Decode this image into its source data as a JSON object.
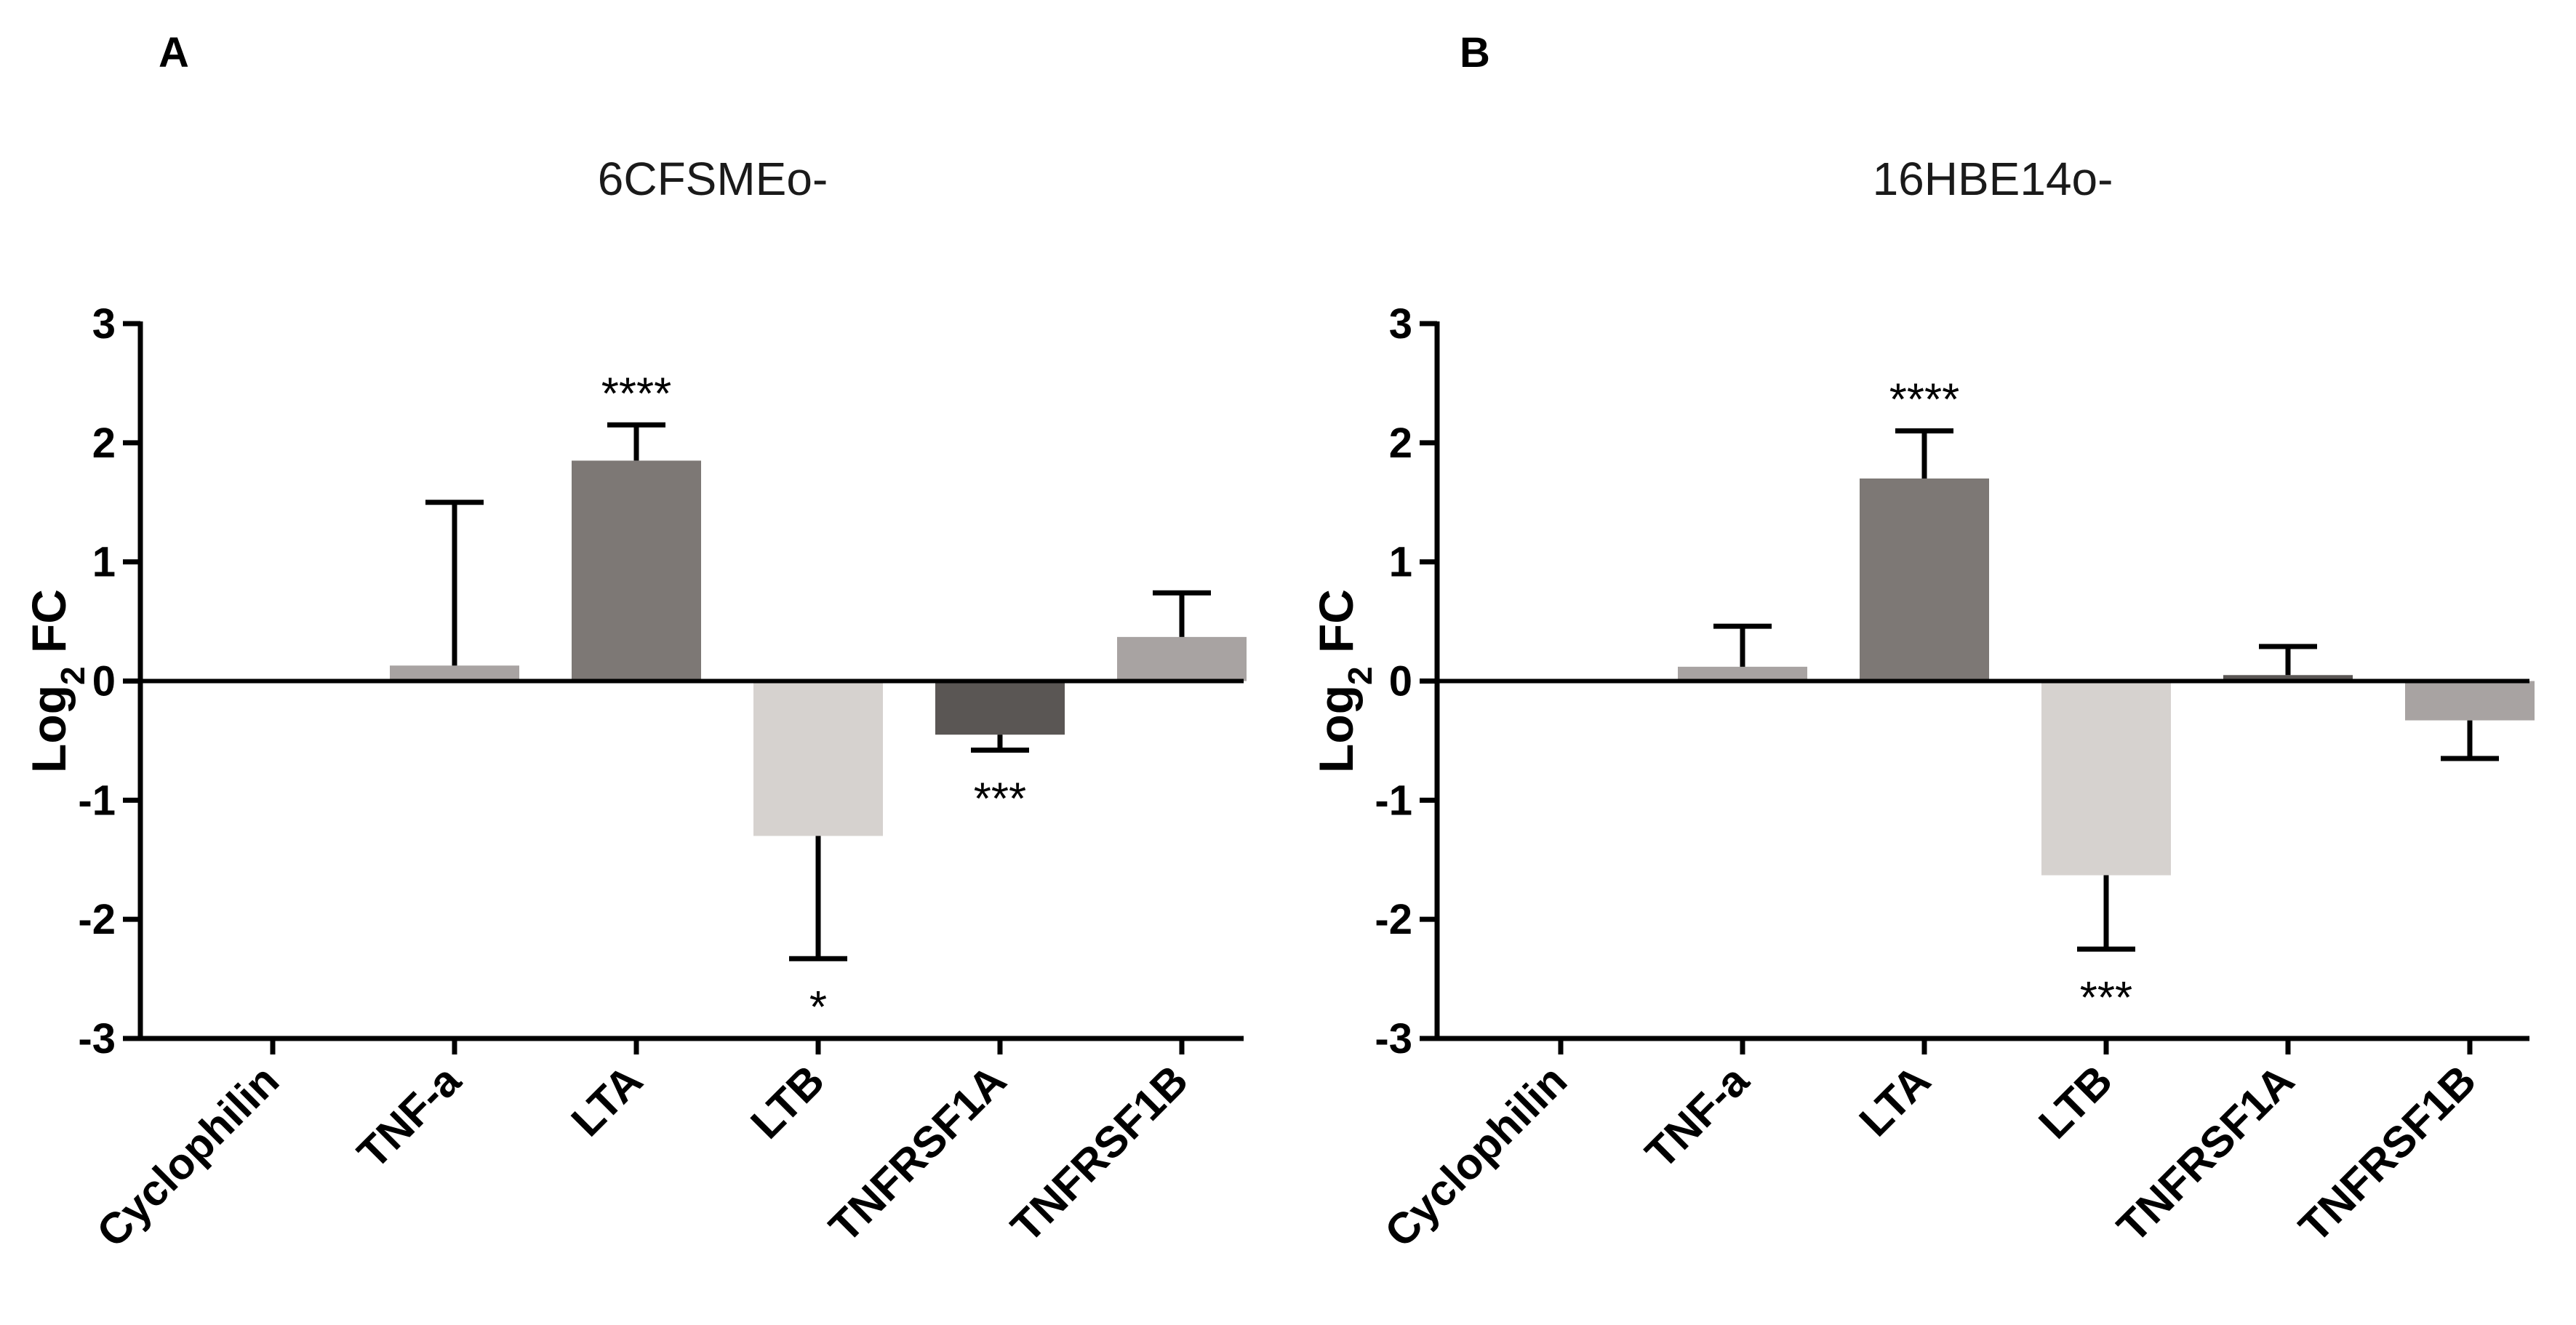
{
  "chart_data": [
    {
      "type": "bar",
      "panel": "A",
      "title": "6CFSMEo-",
      "ylabel_main": "Log",
      "ylabel_sub": "2",
      "ylabel_tail": " FC",
      "ylim": [
        -3,
        3
      ],
      "yticks": [
        "3",
        "2",
        "1",
        "0",
        "-1",
        "-2",
        "-3"
      ],
      "ytick_values": [
        3,
        2,
        1,
        0,
        -1,
        -2,
        -3
      ],
      "categories": [
        "Cyclophilin",
        "TNF-a",
        "LTA",
        "LTB",
        "TNFRSF1A",
        "TNFRSF1B"
      ],
      "values": [
        0,
        0.13,
        1.85,
        -1.3,
        -0.45,
        0.37
      ],
      "errors": [
        0,
        1.37,
        0.3,
        1.03,
        0.13,
        0.37
      ],
      "significance": [
        "",
        "",
        "****",
        "*",
        "***",
        ""
      ],
      "colors": [
        "#ffffff",
        "#a8a3a2",
        "#7d7875",
        "#d6d2cf",
        "#5a5654",
        "#a8a3a2"
      ]
    },
    {
      "type": "bar",
      "panel": "B",
      "title": "16HBE14o-",
      "ylabel_main": "Log",
      "ylabel_sub": "2",
      "ylabel_tail": " FC",
      "ylim": [
        -3,
        3
      ],
      "yticks": [
        "3",
        "2",
        "1",
        "0",
        "-1",
        "-2",
        "-3"
      ],
      "ytick_values": [
        3,
        2,
        1,
        0,
        -1,
        -2,
        -3
      ],
      "categories": [
        "Cyclophilin",
        "TNF-a",
        "LTA",
        "LTB",
        "TNFRSF1A",
        "TNFRSF1B"
      ],
      "values": [
        0,
        0.12,
        1.7,
        -1.63,
        0.05,
        -0.33
      ],
      "errors": [
        0,
        0.34,
        0.4,
        0.62,
        0.24,
        0.32
      ],
      "significance": [
        "",
        "",
        "****",
        "***",
        "",
        ""
      ],
      "colors": [
        "#ffffff",
        "#a8a3a2",
        "#7d7875",
        "#d6d2cf",
        "#5a5654",
        "#a8a3a2"
      ]
    }
  ]
}
